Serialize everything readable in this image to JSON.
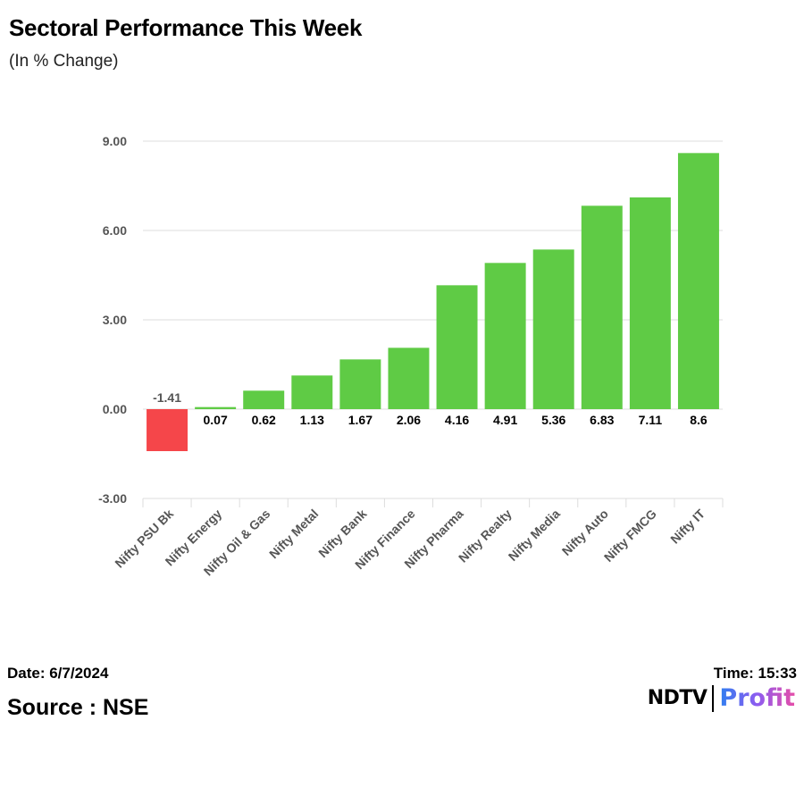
{
  "header": {
    "title": "Sectoral Performance This Week",
    "subtitle": "(In % Change)"
  },
  "footer": {
    "date": "Date: 6/7/2024",
    "time": "Time: 15:33",
    "source": "Source : NSE",
    "logo_left": "NDTV",
    "logo_right": "Profit"
  },
  "colors": {
    "positive": "#5fcb45",
    "negative": "#f5464a",
    "grid": "#dddddd",
    "axis_text": "#555555"
  },
  "chart_data": {
    "type": "bar",
    "title": "Sectoral Performance This Week",
    "subtitle": "(In % Change)",
    "xlabel": "",
    "ylabel": "",
    "categories": [
      "Nifty PSU Bk",
      "Nifty Energy",
      "Nifty Oil & Gas",
      "Nifty Metal",
      "Nifty Bank",
      "Nifty Finance",
      "Nifty Pharma",
      "Nifty Realty",
      "Nifty Media",
      "Nifty Auto",
      "Nifty FMCG",
      "Nifty IT"
    ],
    "values": [
      -1.41,
      0.07,
      0.62,
      1.13,
      1.67,
      2.06,
      4.16,
      4.91,
      5.36,
      6.83,
      7.11,
      8.6
    ],
    "data_labels": [
      "-1.41",
      "0.07",
      "0.62",
      "1.13",
      "1.67",
      "2.06",
      "4.16",
      "4.91",
      "5.36",
      "6.83",
      "7.11",
      "8.6"
    ],
    "ylim": [
      -3,
      9
    ],
    "yticks": [
      -3,
      0,
      3,
      6,
      9
    ],
    "ytick_labels": [
      "-3.00",
      "0.00",
      "3.00",
      "6.00",
      "9.00"
    ],
    "grid": true,
    "legend": "none"
  }
}
